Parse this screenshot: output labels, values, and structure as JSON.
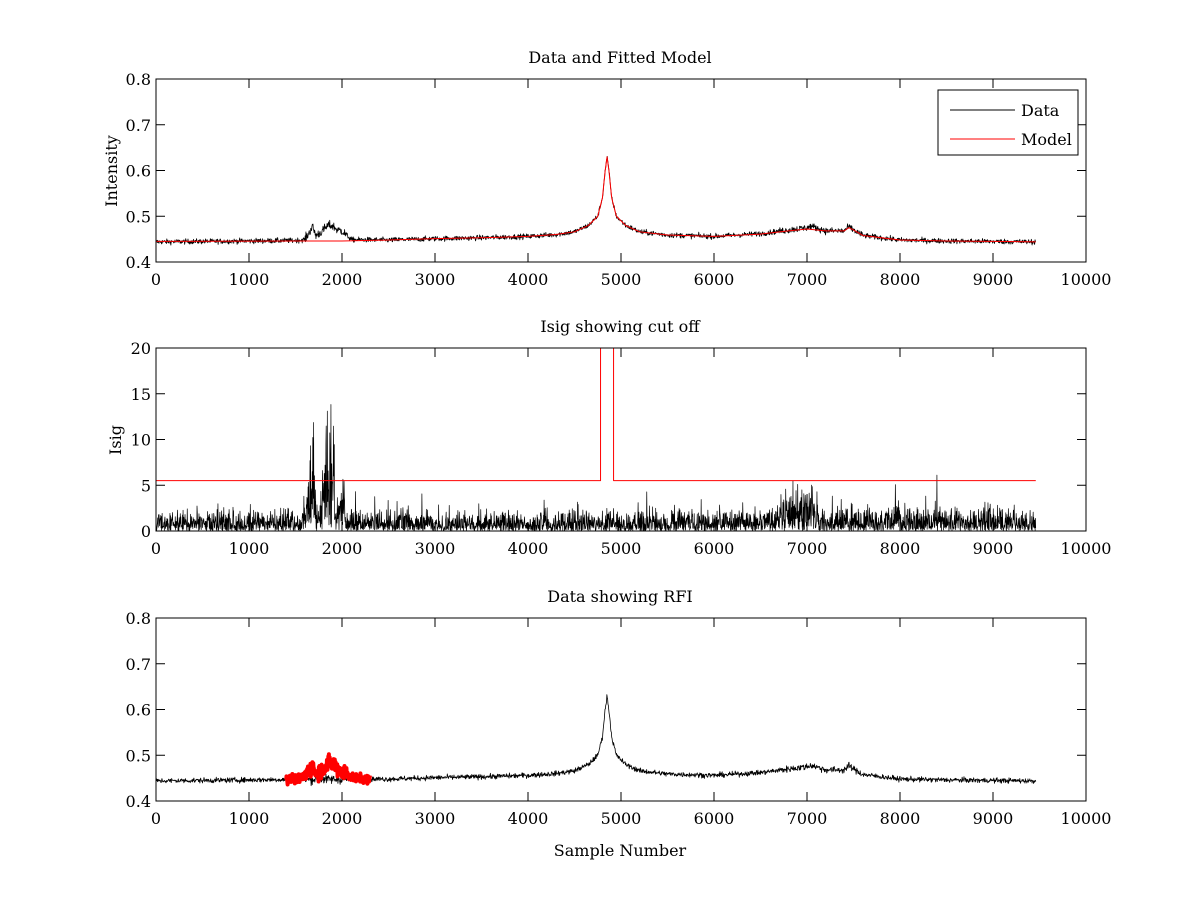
{
  "chart_data": [
    {
      "type": "line",
      "title": "Data and Fitted Model",
      "xlabel": "",
      "ylabel": "Intensity",
      "xlim": [
        0,
        10000
      ],
      "ylim": [
        0.4,
        0.8
      ],
      "xticks": [
        "0",
        "1000",
        "2000",
        "3000",
        "4000",
        "5000",
        "6000",
        "7000",
        "8000",
        "9000",
        "10000"
      ],
      "yticks": [
        "0.4",
        "0.5",
        "0.6",
        "0.7",
        "0.8"
      ],
      "grid": false,
      "legend": {
        "placement": "top-right",
        "entries": [
          "Data",
          "Model"
        ]
      },
      "series": [
        {
          "name": "Data",
          "color": "#000000",
          "style": "noisy",
          "noise": 0.003,
          "x": [
            0,
            1000,
            1500,
            1600,
            1650,
            1680,
            1720,
            1780,
            1850,
            1900,
            1950,
            2000,
            2100,
            2500,
            3000,
            3500,
            4000,
            4300,
            4500,
            4650,
            4750,
            4800,
            4830,
            4850,
            4870,
            4900,
            4950,
            5050,
            5200,
            5500,
            6000,
            6500,
            6800,
            7000,
            7050,
            7200,
            7400,
            7450,
            7500,
            7600,
            8000,
            8500,
            9000,
            9460
          ],
          "y": [
            0.444,
            0.446,
            0.447,
            0.449,
            0.465,
            0.478,
            0.458,
            0.466,
            0.48,
            0.479,
            0.47,
            0.468,
            0.449,
            0.448,
            0.451,
            0.453,
            0.456,
            0.46,
            0.466,
            0.48,
            0.5,
            0.54,
            0.6,
            0.63,
            0.6,
            0.54,
            0.5,
            0.48,
            0.466,
            0.459,
            0.456,
            0.462,
            0.47,
            0.475,
            0.478,
            0.468,
            0.468,
            0.477,
            0.47,
            0.458,
            0.448,
            0.446,
            0.445,
            0.444
          ]
        },
        {
          "name": "Model",
          "color": "#ff0000",
          "style": "line",
          "x": [
            0,
            1500,
            2000,
            2500,
            3000,
            3500,
            4000,
            4300,
            4500,
            4650,
            4750,
            4800,
            4830,
            4850,
            4870,
            4900,
            4950,
            5050,
            5200,
            5500,
            6000,
            6500,
            6800,
            7000,
            7200,
            7400,
            7450,
            7500,
            7600,
            8000,
            8500,
            9000,
            9460
          ],
          "y": [
            0.445,
            0.446,
            0.446,
            0.448,
            0.451,
            0.453,
            0.456,
            0.46,
            0.466,
            0.48,
            0.5,
            0.54,
            0.6,
            0.63,
            0.6,
            0.54,
            0.5,
            0.48,
            0.466,
            0.459,
            0.456,
            0.461,
            0.468,
            0.472,
            0.468,
            0.468,
            0.475,
            0.47,
            0.458,
            0.448,
            0.446,
            0.445,
            0.444
          ]
        }
      ]
    },
    {
      "type": "line",
      "title": "Isig showing cut off",
      "xlabel": "",
      "ylabel": "Isig",
      "xlim": [
        0,
        10000
      ],
      "ylim": [
        0,
        20
      ],
      "xticks": [
        "0",
        "1000",
        "2000",
        "3000",
        "4000",
        "5000",
        "6000",
        "7000",
        "8000",
        "9000",
        "10000"
      ],
      "yticks": [
        "0",
        "5",
        "10",
        "15",
        "20"
      ],
      "grid": false,
      "series": [
        {
          "name": "",
          "color": "#000000",
          "style": "spiky",
          "x": [
            0,
            1600,
            1650,
            1680,
            1720,
            1760,
            1800,
            1850,
            1880,
            1920,
            1950,
            2000,
            2050,
            2100,
            6000,
            6700,
            6800,
            6900,
            7000,
            7050,
            7100,
            7300,
            9460
          ],
          "y": [
            1.6,
            1.6,
            5.5,
            8.0,
            4.0,
            1.5,
            6.5,
            8.5,
            9.5,
            8.0,
            3.0,
            6.0,
            2.0,
            1.5,
            1.5,
            1.8,
            3.5,
            3.0,
            3.5,
            4.0,
            2.5,
            1.8,
            1.6
          ]
        },
        {
          "name": "",
          "color": "#ff0000",
          "style": "line",
          "x": [
            0,
            4780,
            4780,
            4920,
            4920,
            9460
          ],
          "y": [
            5.5,
            5.5,
            20,
            20,
            5.5,
            5.5
          ]
        }
      ]
    },
    {
      "type": "line",
      "title": "Data showing RFI",
      "xlabel": "Sample Number",
      "ylabel": "",
      "xlim": [
        0,
        10000
      ],
      "ylim": [
        0.4,
        0.8
      ],
      "xticks": [
        "0",
        "1000",
        "2000",
        "3000",
        "4000",
        "5000",
        "6000",
        "7000",
        "8000",
        "9000",
        "10000"
      ],
      "yticks": [
        "0.4",
        "0.5",
        "0.6",
        "0.7",
        "0.8"
      ],
      "grid": false,
      "series": [
        {
          "name": "",
          "color": "#000000",
          "style": "noisy",
          "noise": 0.003,
          "x": [
            0,
            1000,
            1400,
            2300,
            2500,
            3000,
            3500,
            4000,
            4300,
            4500,
            4650,
            4750,
            4800,
            4830,
            4850,
            4870,
            4900,
            4950,
            5050,
            5200,
            5500,
            6000,
            6500,
            6800,
            7000,
            7050,
            7200,
            7400,
            7450,
            7500,
            7600,
            8000,
            8500,
            9000,
            9460
          ],
          "y": [
            0.444,
            0.446,
            0.447,
            0.448,
            0.448,
            0.451,
            0.453,
            0.456,
            0.46,
            0.466,
            0.48,
            0.5,
            0.54,
            0.6,
            0.63,
            0.6,
            0.54,
            0.5,
            0.48,
            0.466,
            0.459,
            0.456,
            0.462,
            0.47,
            0.475,
            0.478,
            0.468,
            0.468,
            0.477,
            0.47,
            0.458,
            0.448,
            0.446,
            0.445,
            0.444
          ]
        },
        {
          "name": "",
          "color": "#ff0000",
          "style": "noisy-thick",
          "noise": 0.005,
          "x": [
            1400,
            1550,
            1600,
            1650,
            1680,
            1720,
            1780,
            1850,
            1900,
            1950,
            2000,
            2100,
            2300
          ],
          "y": [
            0.447,
            0.449,
            0.455,
            0.468,
            0.476,
            0.46,
            0.468,
            0.481,
            0.482,
            0.472,
            0.466,
            0.452,
            0.448
          ]
        }
      ]
    }
  ]
}
